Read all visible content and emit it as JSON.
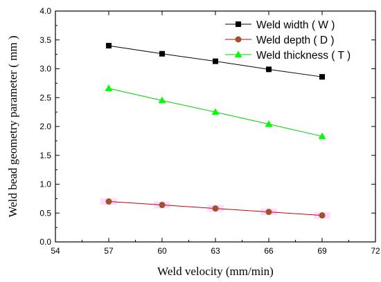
{
  "chart_data": {
    "type": "line",
    "title": "",
    "xlabel": "Weld velocity (mm/min)",
    "ylabel": "Weld bead geometry parameter ( mm )",
    "xlim": [
      54,
      72
    ],
    "ylim": [
      0.0,
      4.0
    ],
    "xticks": [
      54,
      57,
      60,
      63,
      66,
      69,
      72
    ],
    "xtick_labels": [
      "54",
      "57",
      "60",
      "63",
      "66",
      "69",
      "72"
    ],
    "yticks": [
      0.0,
      0.5,
      1.0,
      1.5,
      2.0,
      2.5,
      3.0,
      3.5,
      4.0
    ],
    "ytick_labels": [
      "0.0",
      "0.5",
      "1.0",
      "1.5",
      "2.0",
      "2.5",
      "3.0",
      "3.5",
      "4.0"
    ],
    "grid": false,
    "legend": "top-right",
    "x": [
      57,
      60,
      63,
      66,
      69
    ],
    "series": [
      {
        "name": "Weld width ( W )",
        "values": [
          3.4,
          3.26,
          3.13,
          2.99,
          2.86
        ],
        "line_color": "#000000",
        "marker_color": "#000000",
        "marker": "square"
      },
      {
        "name": "Weld depth ( D )",
        "values": [
          0.7,
          0.64,
          0.58,
          0.52,
          0.46
        ],
        "line_color": "#cc0000",
        "marker_color": "#a0522d",
        "marker": "circle"
      },
      {
        "name": "Weld thickness ( T )",
        "values": [
          2.66,
          2.45,
          2.25,
          2.04,
          1.83
        ],
        "line_color": "#00cc00",
        "marker_color": "#00ff00",
        "marker": "triangle"
      }
    ],
    "error_band_color": "#ff66ff"
  }
}
